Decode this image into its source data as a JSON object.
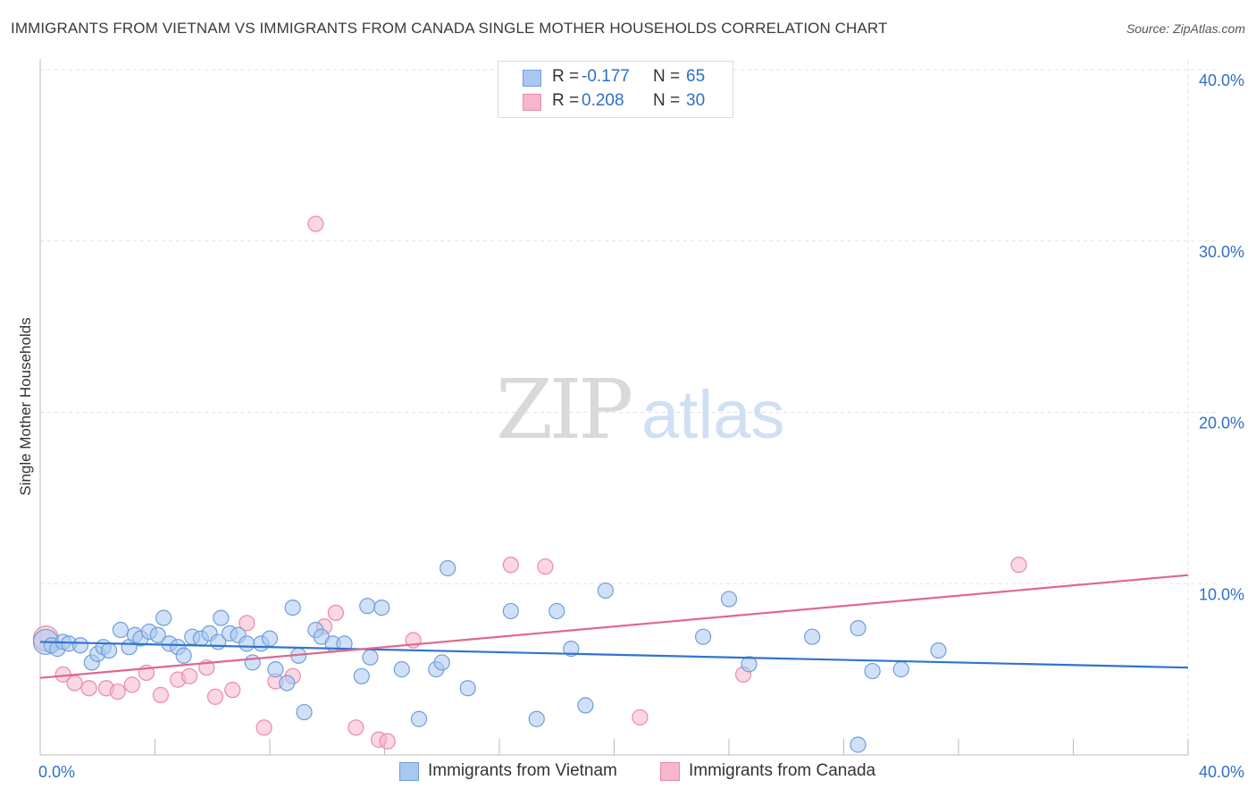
{
  "title": "IMMIGRANTS FROM VIETNAM VS IMMIGRANTS FROM CANADA SINGLE MOTHER HOUSEHOLDS CORRELATION CHART",
  "source": "Source: ZipAtlas.com",
  "watermark": {
    "zip": "ZIP",
    "atlas": "atlas"
  },
  "colors": {
    "vietnam_fill": "#a9c8f0",
    "vietnam_stroke": "#6f9edb",
    "vietnam_line": "#2f74cf",
    "canada_fill": "#f6b7cb",
    "canada_stroke": "#e98aa9",
    "canada_line": "#e0668f",
    "accent_text": "#2f6fc9",
    "grid": "#e2e2e2"
  },
  "legend": [
    {
      "label": "R = ",
      "r_value": "-0.177",
      "n_label": "N = ",
      "n_value": "65"
    },
    {
      "label": "R = ",
      "r_value": "0.208",
      "n_label": "N = ",
      "n_value": "30"
    }
  ],
  "chart_data": {
    "type": "scatter",
    "title": "IMMIGRANTS FROM VIETNAM VS IMMIGRANTS FROM CANADA SINGLE MOTHER HOUSEHOLDS CORRELATION CHART",
    "xlabel": "",
    "ylabel": "Single Mother Households",
    "xlim": [
      0,
      40
    ],
    "ylim": [
      0,
      40
    ],
    "x_tick_labels": [
      "0.0%",
      "40.0%"
    ],
    "y_ticks": [
      10,
      20,
      30,
      40
    ],
    "y_tick_labels": [
      "10.0%",
      "20.0%",
      "30.0%",
      "40.0%"
    ],
    "grid": true,
    "legend_position": "top-center",
    "series": [
      {
        "name": "Immigrants from Vietnam",
        "r": -0.177,
        "n": 65,
        "trend": {
          "x": [
            0,
            40
          ],
          "y": [
            6.6,
            5.1
          ]
        },
        "points": [
          [
            0.2,
            6.6
          ],
          [
            0.4,
            6.4
          ],
          [
            0.6,
            6.2
          ],
          [
            0.8,
            6.6
          ],
          [
            1.0,
            6.5
          ],
          [
            1.4,
            6.4
          ],
          [
            1.8,
            5.4
          ],
          [
            2.0,
            5.9
          ],
          [
            2.2,
            6.3
          ],
          [
            2.4,
            6.1
          ],
          [
            2.8,
            7.3
          ],
          [
            3.1,
            6.3
          ],
          [
            3.3,
            7.0
          ],
          [
            3.5,
            6.8
          ],
          [
            3.8,
            7.2
          ],
          [
            4.1,
            7.0
          ],
          [
            4.3,
            8.0
          ],
          [
            4.5,
            6.5
          ],
          [
            4.8,
            6.3
          ],
          [
            5.0,
            5.8
          ],
          [
            5.3,
            6.9
          ],
          [
            5.6,
            6.8
          ],
          [
            5.9,
            7.1
          ],
          [
            6.2,
            6.6
          ],
          [
            6.3,
            8.0
          ],
          [
            6.6,
            7.1
          ],
          [
            6.9,
            7.0
          ],
          [
            7.2,
            6.5
          ],
          [
            7.4,
            5.4
          ],
          [
            7.7,
            6.5
          ],
          [
            8.0,
            6.8
          ],
          [
            8.2,
            5.0
          ],
          [
            8.6,
            4.2
          ],
          [
            8.8,
            8.6
          ],
          [
            9.0,
            5.8
          ],
          [
            9.2,
            2.5
          ],
          [
            9.6,
            7.3
          ],
          [
            9.8,
            6.9
          ],
          [
            10.2,
            6.5
          ],
          [
            10.6,
            6.5
          ],
          [
            11.2,
            4.6
          ],
          [
            11.4,
            8.7
          ],
          [
            11.5,
            5.7
          ],
          [
            11.9,
            8.6
          ],
          [
            12.6,
            5.0
          ],
          [
            13.2,
            2.1
          ],
          [
            13.8,
            5.0
          ],
          [
            14.0,
            5.4
          ],
          [
            14.2,
            10.9
          ],
          [
            14.9,
            3.9
          ],
          [
            16.4,
            8.4
          ],
          [
            17.3,
            2.1
          ],
          [
            18.0,
            8.4
          ],
          [
            18.5,
            6.2
          ],
          [
            19.0,
            2.9
          ],
          [
            19.7,
            9.6
          ],
          [
            23.1,
            6.9
          ],
          [
            24.0,
            9.1
          ],
          [
            24.7,
            5.3
          ],
          [
            26.9,
            6.9
          ],
          [
            28.5,
            7.4
          ],
          [
            28.5,
            0.6
          ],
          [
            29.0,
            4.9
          ],
          [
            30.0,
            5.0
          ],
          [
            31.3,
            6.1
          ]
        ]
      },
      {
        "name": "Immigrants from Canada",
        "r": 0.208,
        "n": 30,
        "trend": {
          "x": [
            0,
            40
          ],
          "y": [
            4.5,
            10.5
          ]
        },
        "points": [
          [
            0.2,
            6.8
          ],
          [
            0.8,
            4.7
          ],
          [
            1.2,
            4.2
          ],
          [
            1.7,
            3.9
          ],
          [
            2.3,
            3.9
          ],
          [
            2.7,
            3.7
          ],
          [
            3.2,
            4.1
          ],
          [
            3.7,
            4.8
          ],
          [
            4.2,
            3.5
          ],
          [
            4.8,
            4.4
          ],
          [
            5.2,
            4.6
          ],
          [
            5.8,
            5.1
          ],
          [
            6.1,
            3.4
          ],
          [
            6.7,
            3.8
          ],
          [
            7.2,
            7.7
          ],
          [
            7.8,
            1.6
          ],
          [
            8.2,
            4.3
          ],
          [
            8.8,
            4.6
          ],
          [
            9.6,
            31.0
          ],
          [
            9.9,
            7.5
          ],
          [
            10.3,
            8.3
          ],
          [
            11.0,
            1.6
          ],
          [
            11.8,
            0.9
          ],
          [
            12.1,
            0.8
          ],
          [
            13.0,
            6.7
          ],
          [
            16.4,
            11.1
          ],
          [
            17.6,
            11.0
          ],
          [
            20.9,
            2.2
          ],
          [
            24.5,
            4.7
          ],
          [
            34.1,
            11.1
          ]
        ]
      }
    ]
  }
}
